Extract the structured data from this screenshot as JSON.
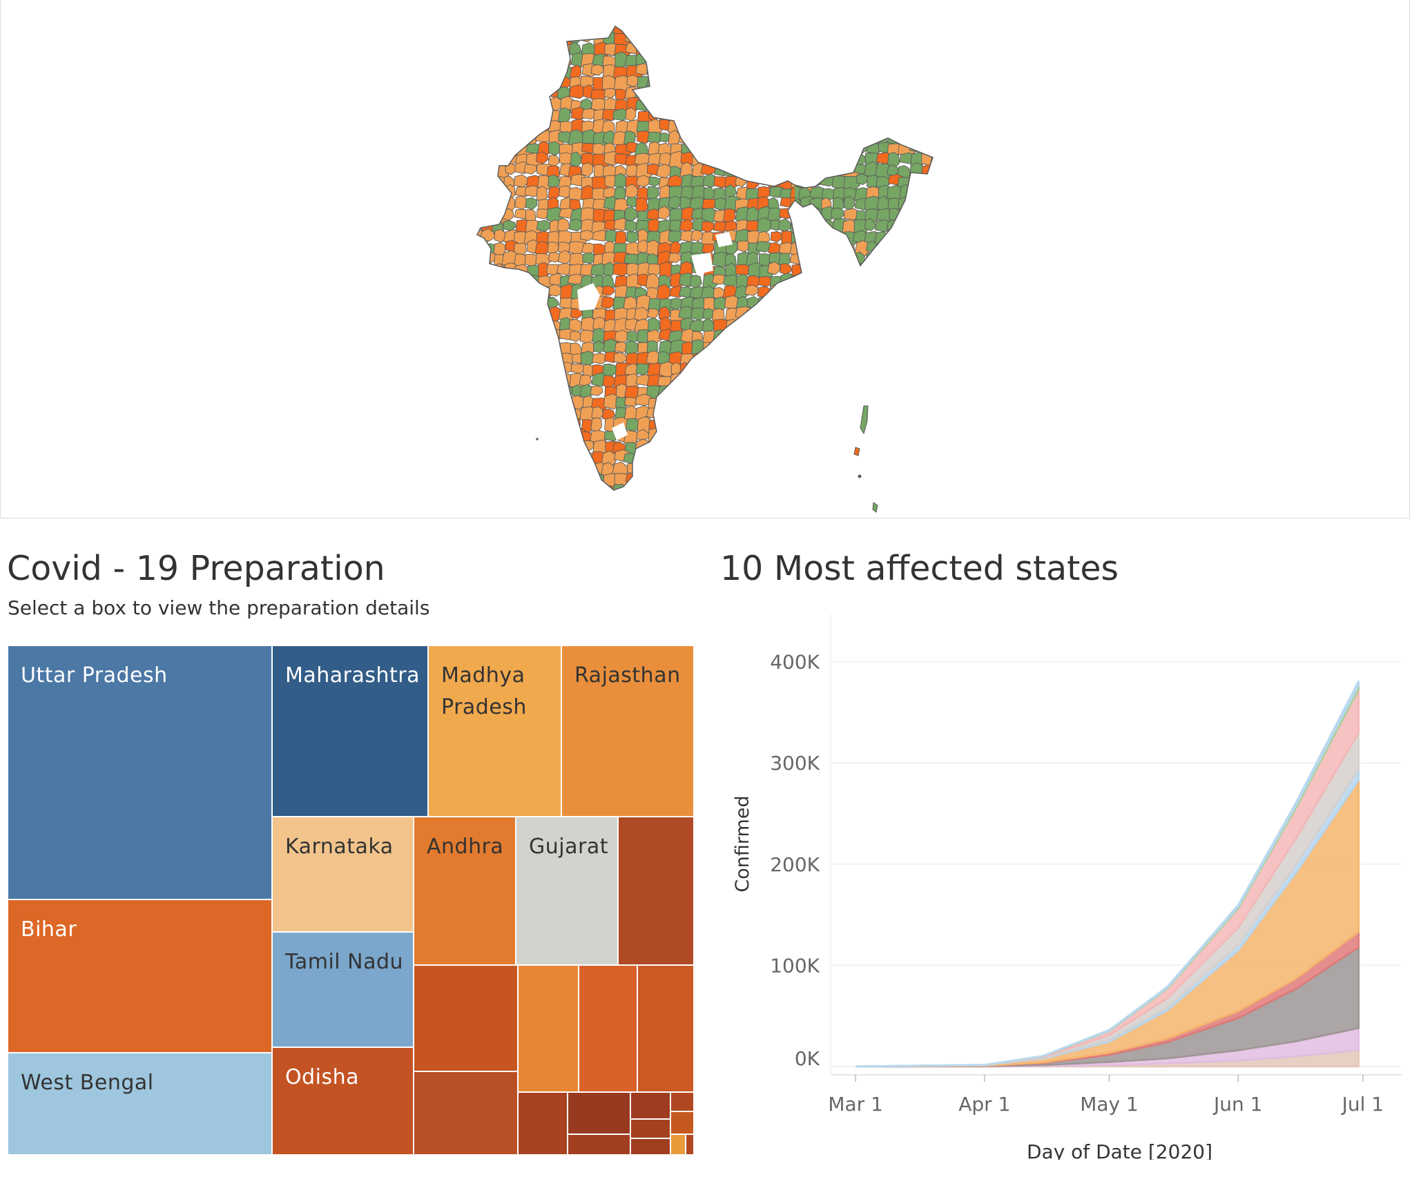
{
  "colors": {
    "map_green": "#76a564",
    "map_orange": "#f0a054",
    "map_red": "#f26b1f",
    "map_border": "#5a5a5a"
  },
  "treemap": {
    "title": "Covid - 19 Preparation",
    "subtitle": "Select a box to view the preparation details",
    "tiles": [
      {
        "label": "Uttar Pradesh",
        "color": "#4c78a6",
        "text": "light"
      },
      {
        "label": "Maharashtra",
        "color": "#325d88",
        "text": "light"
      },
      {
        "label": "Madhya Pradesh",
        "color": "#f1a94e",
        "text": "dark"
      },
      {
        "label": "Rajasthan",
        "color": "#e98f3c",
        "text": "dark"
      },
      {
        "label": "Bihar",
        "color": "#dc6726",
        "text": "light"
      },
      {
        "label": "Karnataka",
        "color": "#f2c48b",
        "text": "dark"
      },
      {
        "label": "Andhra",
        "color": "#e27b2e",
        "text": "dark"
      },
      {
        "label": "Gujarat",
        "color": "#d3d3cd",
        "text": "dark"
      },
      {
        "label": "",
        "color": "#b04a24",
        "text": "light"
      },
      {
        "label": "Tamil Nadu",
        "color": "#7ba7cd",
        "text": "dark"
      },
      {
        "label": "West Bengal",
        "color": "#9ec6de",
        "text": "dark"
      },
      {
        "label": "Odisha",
        "color": "#c45323",
        "text": "light"
      },
      {
        "label": "",
        "color": "#c75522",
        "text": "light"
      },
      {
        "label": "",
        "color": "#e78734",
        "text": "light"
      },
      {
        "label": "",
        "color": "#d9622a",
        "text": "light"
      },
      {
        "label": "",
        "color": "#cc5a25",
        "text": "light"
      },
      {
        "label": "",
        "color": "#b94f24",
        "text": "light"
      },
      {
        "label": "",
        "color": "#a84220",
        "text": "light"
      },
      {
        "label": "",
        "color": "#983a20",
        "text": "light"
      },
      {
        "label": "",
        "color": "#a33f21",
        "text": "light"
      },
      {
        "label": "",
        "color": "#9d3c20",
        "text": "light"
      },
      {
        "label": "",
        "color": "#a5411f",
        "text": "light"
      },
      {
        "label": "",
        "color": "#a03e1f",
        "text": "light"
      },
      {
        "label": "",
        "color": "#b14822",
        "text": "light"
      },
      {
        "label": "",
        "color": "#c4581f",
        "text": "light"
      },
      {
        "label": "",
        "color": "#e99a3a",
        "text": "light"
      },
      {
        "label": "",
        "color": "#b24822",
        "text": "light"
      }
    ]
  },
  "chart_data": {
    "type": "area",
    "title": "10 Most affected states",
    "xlabel": "Day of Date [2020]",
    "ylabel": "Confirmed",
    "x_ticks": [
      "Mar 1",
      "Apr 1",
      "May 1",
      "Jun 1",
      "Jul 1"
    ],
    "y_ticks": [
      "0K",
      "100K",
      "200K",
      "300K",
      "400K"
    ],
    "ylim": [
      0,
      440000
    ],
    "x": [
      "2020-03-01",
      "2020-04-01",
      "2020-04-15",
      "2020-05-01",
      "2020-05-15",
      "2020-06-01",
      "2020-06-15",
      "2020-06-30"
    ],
    "series": [
      {
        "color": "#e3c8b8",
        "values": [
          0,
          100,
          400,
          1500,
          3000,
          6000,
          10000,
          16000
        ]
      },
      {
        "color": "#e2bde0",
        "values": [
          0,
          200,
          1000,
          3000,
          5000,
          10000,
          15000,
          22000
        ]
      },
      {
        "color": "#9e9595",
        "values": [
          0,
          300,
          2000,
          7000,
          16000,
          32000,
          52000,
          80000
        ]
      },
      {
        "color": "#e07a7a",
        "values": [
          0,
          100,
          600,
          2000,
          3500,
          6500,
          10000,
          15000
        ]
      },
      {
        "color": "#f5b56c",
        "values": [
          0,
          500,
          3500,
          11000,
          28000,
          60000,
          105000,
          150000
        ]
      },
      {
        "color": "#b6d6ee",
        "values": [
          0,
          100,
          700,
          2000,
          3000,
          5500,
          8000,
          11000
        ]
      },
      {
        "color": "#d6d0cd",
        "values": [
          0,
          100,
          1000,
          4500,
          9000,
          17000,
          26000,
          36000
        ]
      },
      {
        "color": "#f4b7b7",
        "values": [
          0,
          100,
          900,
          4000,
          9500,
          19000,
          30000,
          43000
        ]
      },
      {
        "color": "#a9d39a",
        "values": [
          0,
          50,
          150,
          500,
          900,
          1700,
          2600,
          4000
        ]
      },
      {
        "color": "#b9d8ee",
        "values": [
          0,
          50,
          150,
          500,
          900,
          1700,
          2600,
          4000
        ]
      }
    ]
  }
}
